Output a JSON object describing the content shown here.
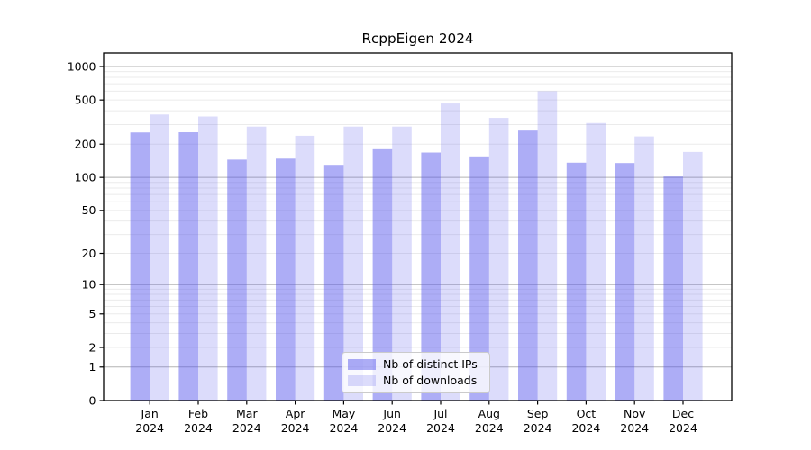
{
  "chart_data": {
    "type": "bar",
    "title": "RcppEigen 2024",
    "categories": [
      "Jan 2024",
      "Feb 2024",
      "Mar 2024",
      "Apr 2024",
      "May 2024",
      "Jun 2024",
      "Jul 2024",
      "Aug 2024",
      "Sep 2024",
      "Oct 2024",
      "Nov 2024",
      "Dec 2024"
    ],
    "series": [
      {
        "name": "Nb of distinct IPs",
        "color": "#a9a9f4",
        "fill": "rgba(80,80,235,0.47)",
        "values": [
          255,
          256,
          145,
          148,
          130,
          180,
          168,
          155,
          265,
          136,
          135,
          102
        ]
      },
      {
        "name": "Nb of downloads",
        "color": "#dcdcf8",
        "fill": "rgba(80,80,235,0.20)",
        "values": [
          370,
          355,
          288,
          238,
          288,
          288,
          465,
          345,
          600,
          310,
          235,
          170
        ]
      }
    ],
    "y_axis": {
      "scale": "log10(value+1)",
      "ticks": [
        1000,
        500,
        200,
        100,
        50,
        20,
        10,
        5,
        2,
        1,
        0
      ],
      "visible_max": 1320,
      "label": ""
    },
    "x_axis": {
      "label": "",
      "tick_format": "month newline year"
    },
    "legend": {
      "position": "inside-bottom-center",
      "entries": [
        "Nb of distinct IPs",
        "Nb of downloads"
      ]
    },
    "grid": {
      "horizontal": true,
      "log_minor_lines": true
    },
    "colors": {
      "grid_decade": "#b3b3b3",
      "grid_minor": "#ebebeb",
      "axis": "#000000",
      "text": "#000000",
      "background": "#ffffff"
    }
  }
}
